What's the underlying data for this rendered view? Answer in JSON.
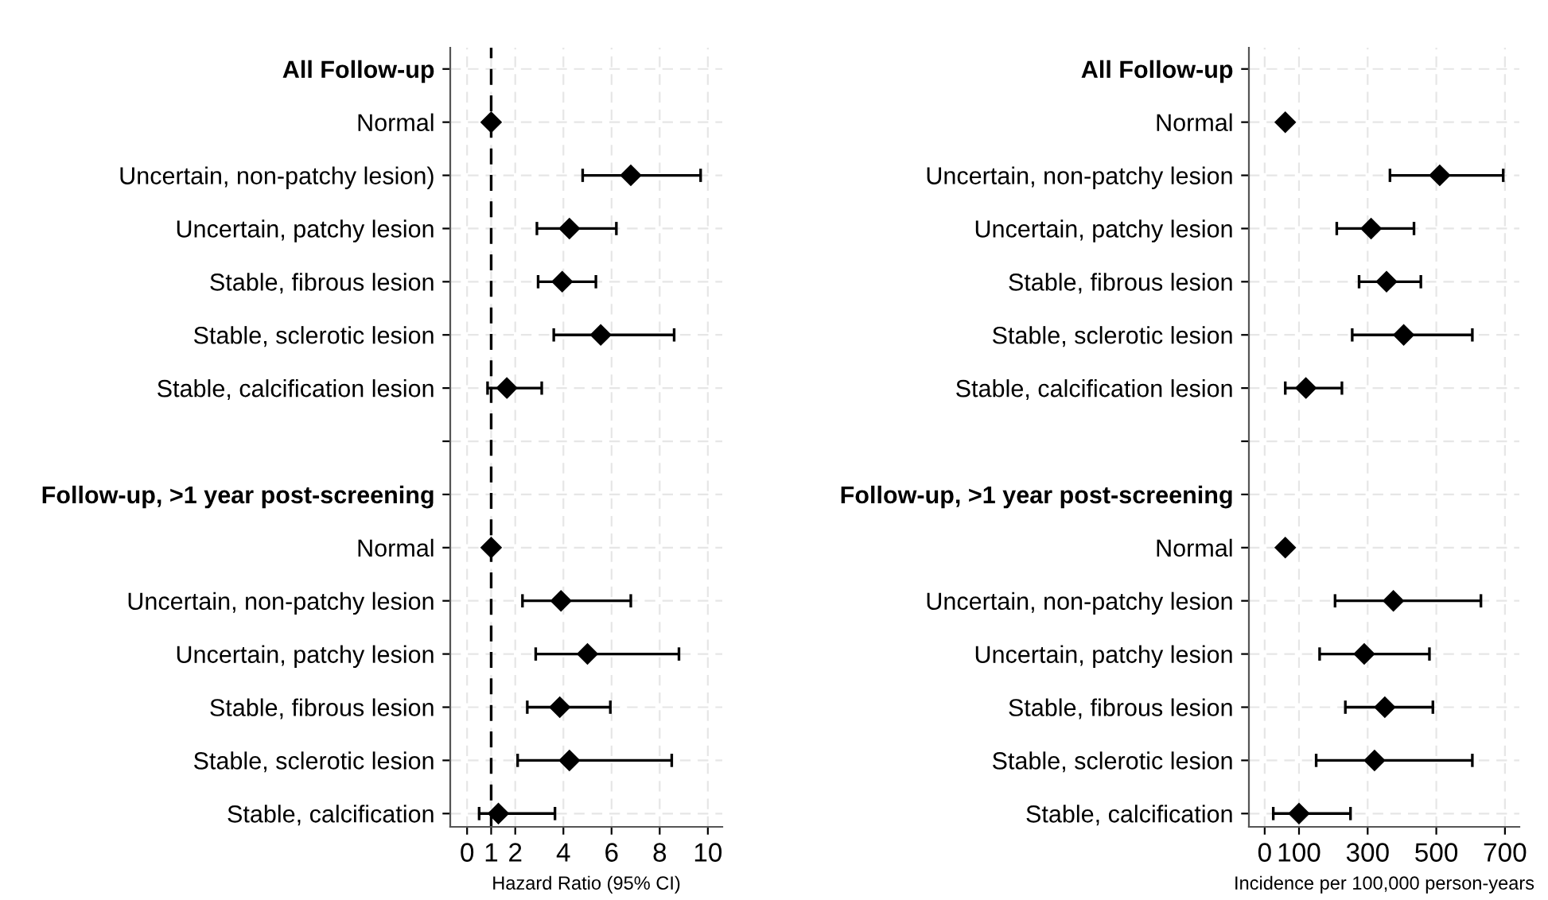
{
  "chart_data": [
    {
      "type": "scatter",
      "orientation": "horizontal",
      "xlabel": "Hazard Ratio (95% CI)",
      "categories": [
        "All Follow-up",
        "Normal",
        "Uncertain, non-patchy lesion)",
        "Uncertain, patchy lesion",
        "Stable, fibrous lesion",
        "Stable, sclerotic lesion",
        "Stable, calcification lesion",
        null,
        "Follow-up, >1 year post-screening",
        "Normal",
        "Uncertain, non-patchy lesion",
        "Uncertain, patchy lesion",
        "Stable, fibrous lesion",
        "Stable, sclerotic lesion",
        "Stable, calcification"
      ],
      "series": [
        {
          "color": "#000000",
          "values": [
            null,
            1.0,
            6.8,
            4.25,
            3.95,
            5.55,
            1.65,
            null,
            null,
            1.0,
            3.9,
            5.0,
            3.85,
            4.25,
            1.3
          ],
          "errors": [
            null,
            null,
            [
              4.8,
              9.7
            ],
            [
              2.9,
              6.2
            ],
            [
              2.95,
              5.35
            ],
            [
              3.6,
              8.6
            ],
            [
              0.85,
              3.1
            ],
            null,
            null,
            null,
            [
              2.3,
              6.8
            ],
            [
              2.85,
              8.8
            ],
            [
              2.5,
              5.95
            ],
            [
              2.1,
              8.5
            ],
            [
              0.5,
              3.65
            ]
          ]
        }
      ],
      "xlim": [
        -0.7,
        10.6
      ],
      "xticks": [
        0,
        1,
        2,
        4,
        6,
        8,
        10
      ],
      "marker": "diamond",
      "grid": true,
      "ref_lines": [
        {
          "axis": "x",
          "value": 1,
          "line_style": "dashed",
          "color": "#000000"
        }
      ]
    },
    {
      "type": "scatter",
      "orientation": "horizontal",
      "xlabel": "Incidence per 100,000 person-years",
      "categories": [
        "All Follow-up",
        "Normal",
        "Uncertain, non-patchy lesion",
        "Uncertain, patchy lesion",
        "Stable, fibrous lesion",
        "Stable, sclerotic lesion",
        "Stable, calcification lesion",
        null,
        "Follow-up, >1 year post-screening",
        "Normal",
        "Uncertain, non-patchy lesion",
        "Uncertain, patchy lesion",
        "Stable, fibrous lesion",
        "Stable, sclerotic lesion",
        "Stable, calcification"
      ],
      "series": [
        {
          "color": "#000000",
          "values": [
            null,
            60,
            510,
            310,
            355,
            405,
            120,
            null,
            null,
            60,
            375,
            290,
            350,
            320,
            100
          ],
          "errors": [
            null,
            null,
            [
              365,
              695
            ],
            [
              210,
              435
            ],
            [
              275,
              455
            ],
            [
              255,
              605
            ],
            [
              60,
              225
            ],
            null,
            null,
            null,
            [
              205,
              630
            ],
            [
              160,
              480
            ],
            [
              235,
              490
            ],
            [
              150,
              605
            ],
            [
              25,
              250
            ]
          ]
        }
      ],
      "xlim": [
        -46,
        742
      ],
      "xticks": [
        0,
        100,
        300,
        500,
        700
      ],
      "marker": "diamond",
      "grid": true
    }
  ]
}
